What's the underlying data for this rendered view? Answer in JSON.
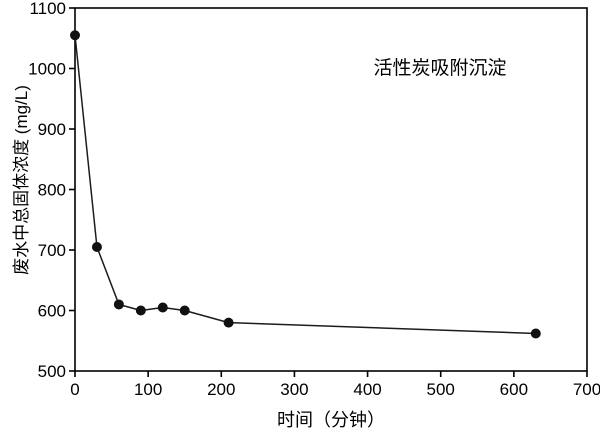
{
  "chart_data": {
    "type": "line",
    "title": "",
    "annotation": "活性炭吸附沉淀",
    "xlabel": "时间（分钟）",
    "ylabel": "废水中总固体浓度 (mg/L)",
    "x": [
      0,
      30,
      60,
      90,
      120,
      150,
      210,
      630
    ],
    "y": [
      1055,
      705,
      610,
      600,
      605,
      600,
      580,
      562
    ],
    "series_name": "废水中总固体浓度",
    "xlim": [
      0,
      700
    ],
    "ylim": [
      500,
      1100
    ],
    "xticks": [
      0,
      100,
      200,
      300,
      400,
      500,
      600,
      700
    ],
    "yticks": [
      500,
      600,
      700,
      800,
      900,
      1000,
      1100
    ],
    "grid": false,
    "legend_position": "none",
    "marker": "filled-circle",
    "marker_radius": 5,
    "line_color": "#1c1c1c",
    "marker_color": "#111111",
    "axis_color": "#000000",
    "background_color": "#ffffff",
    "tick_font_size": 17
  }
}
